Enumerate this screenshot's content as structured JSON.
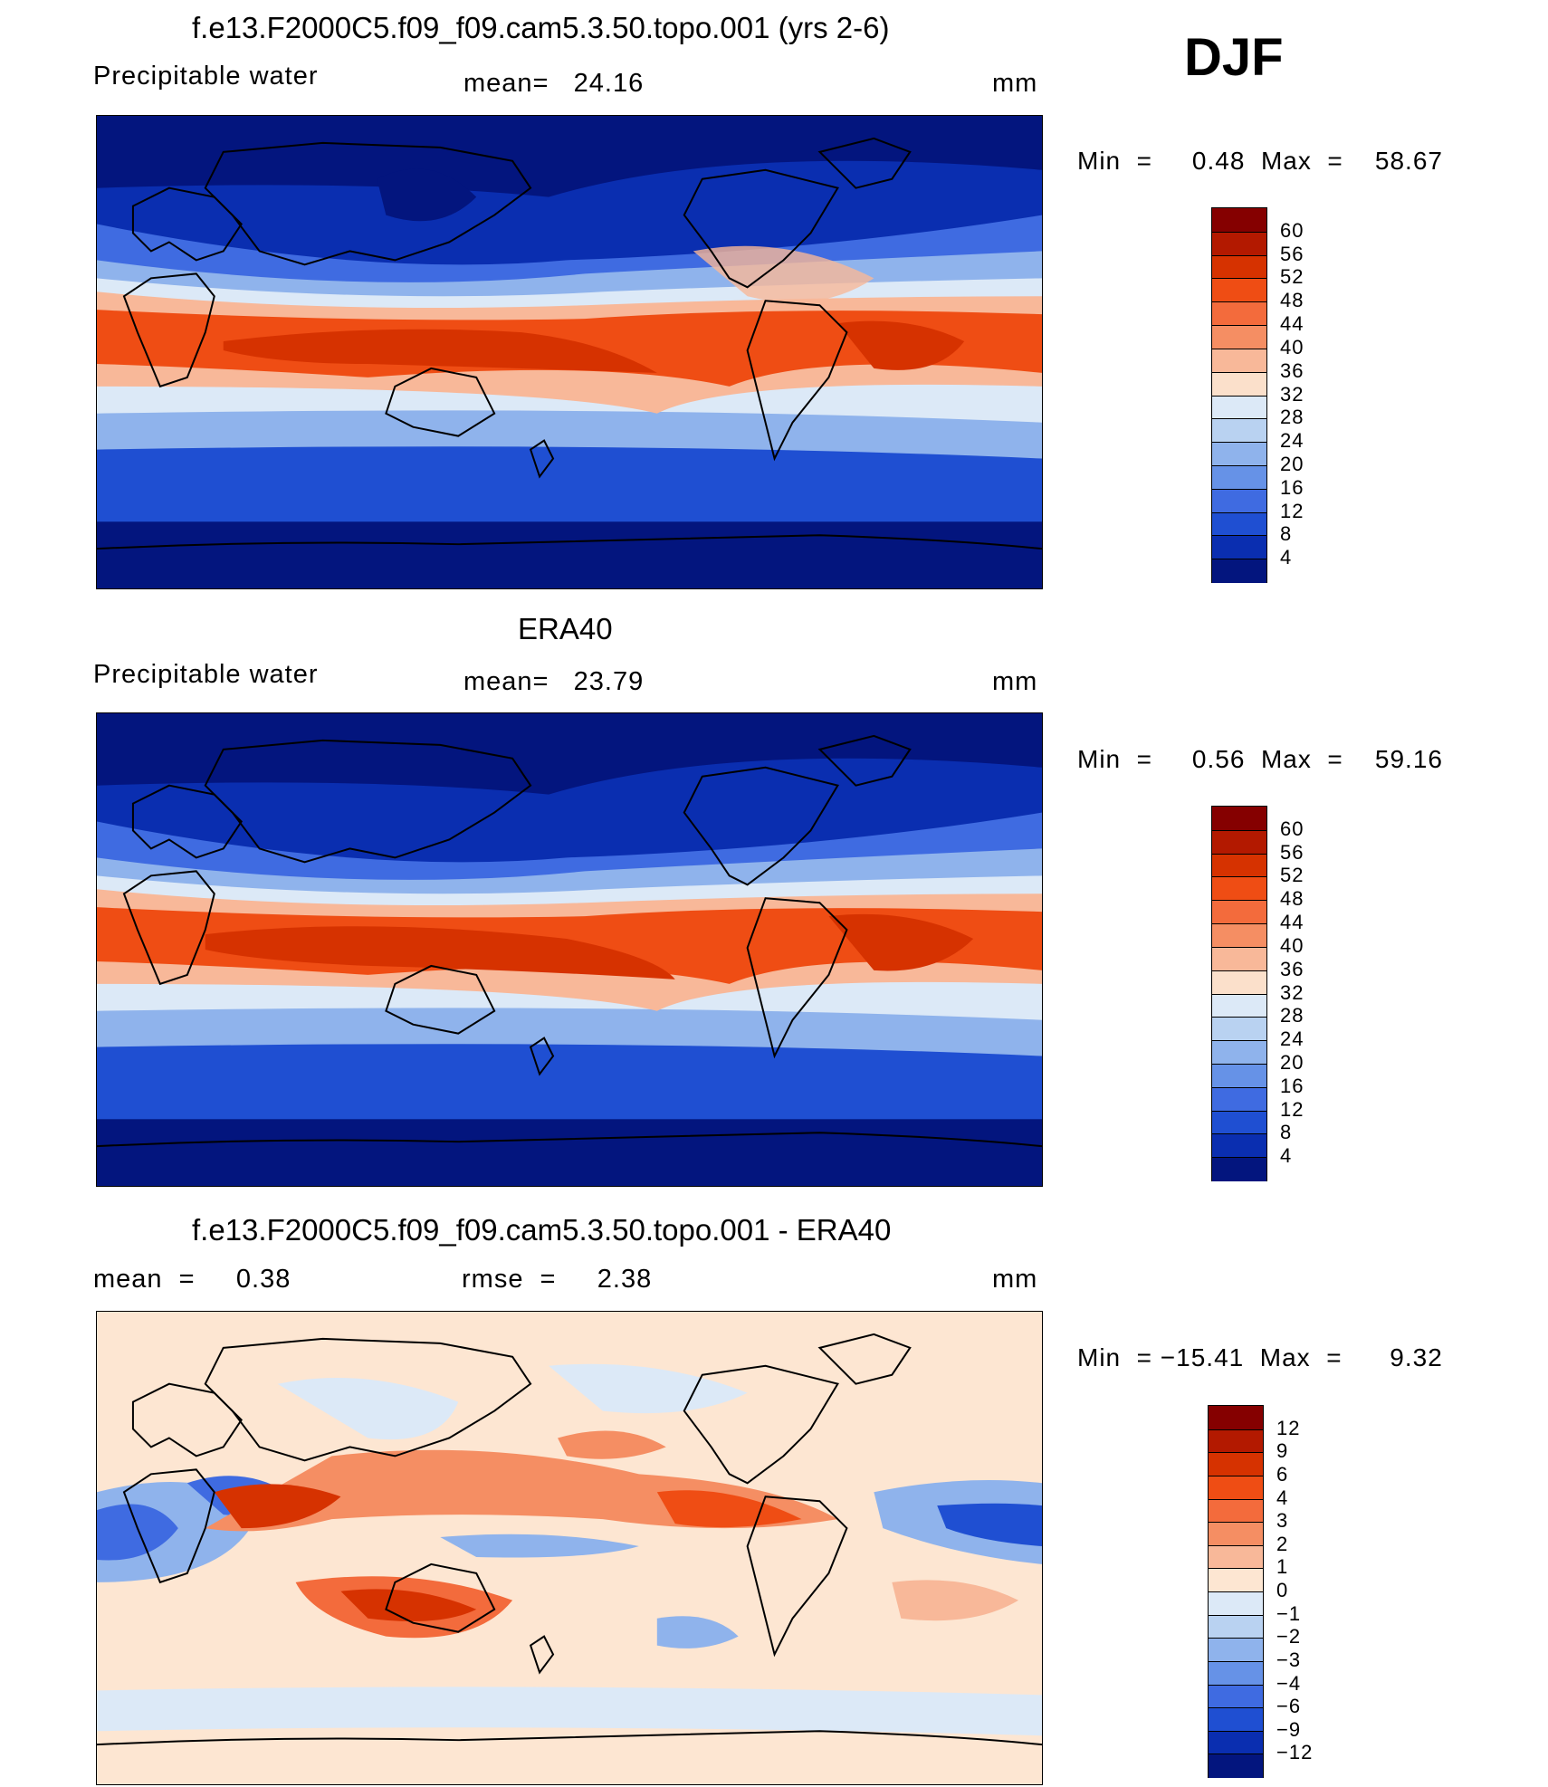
{
  "season": "DJF",
  "panels": [
    {
      "title": "f.e13.F2000C5.f09_f09.cam5.3.50.topo.001 (yrs 2-6)",
      "left_label": "Precipitable  water",
      "center_label": "mean=   24.16",
      "units": "mm",
      "stats": "Min  =     0.48  Max  =    58.67",
      "colorbar": {
        "labels": [
          "60",
          "56",
          "52",
          "48",
          "44",
          "40",
          "36",
          "32",
          "28",
          "24",
          "20",
          "16",
          "12",
          "8",
          "4"
        ],
        "colors": [
          "#850000",
          "#b31900",
          "#d63200",
          "#ef4d14",
          "#f36b3c",
          "#f58e63",
          "#f8b899",
          "#fbe0cb",
          "#dce9f7",
          "#b9d2f1",
          "#8fb3ec",
          "#6692e7",
          "#3f6be1",
          "#1f4fd2",
          "#0a2eb0",
          "#03157e"
        ]
      }
    },
    {
      "title": "ERA40",
      "left_label": "Precipitable  water",
      "center_label": "mean=   23.79",
      "units": "mm",
      "stats": "Min  =     0.56  Max  =    59.16",
      "colorbar": {
        "labels": [
          "60",
          "56",
          "52",
          "48",
          "44",
          "40",
          "36",
          "32",
          "28",
          "24",
          "20",
          "16",
          "12",
          "8",
          "4"
        ],
        "colors": [
          "#850000",
          "#b31900",
          "#d63200",
          "#ef4d14",
          "#f36b3c",
          "#f58e63",
          "#f8b899",
          "#fbe0cb",
          "#dce9f7",
          "#b9d2f1",
          "#8fb3ec",
          "#6692e7",
          "#3f6be1",
          "#1f4fd2",
          "#0a2eb0",
          "#03157e"
        ]
      }
    },
    {
      "title": "f.e13.F2000C5.f09_f09.cam5.3.50.topo.001 - ERA40",
      "left_label": "mean  =     0.38",
      "center_label": "rmse  =     2.38",
      "units": "mm",
      "stats": "Min  = −15.41  Max  =      9.32",
      "colorbar": {
        "labels": [
          "12",
          "9",
          "6",
          "4",
          "3",
          "2",
          "1",
          "0",
          "−1",
          "−2",
          "−3",
          "−4",
          "−6",
          "−9",
          "−12"
        ],
        "colors": [
          "#850000",
          "#b31900",
          "#d63200",
          "#ef4d14",
          "#f36b3c",
          "#f58e63",
          "#f8b899",
          "#fde6d2",
          "#dce9f7",
          "#b9d2f1",
          "#8fb3ec",
          "#6692e7",
          "#3f6be1",
          "#1f4fd2",
          "#0a2eb0",
          "#03157e"
        ]
      }
    }
  ]
}
